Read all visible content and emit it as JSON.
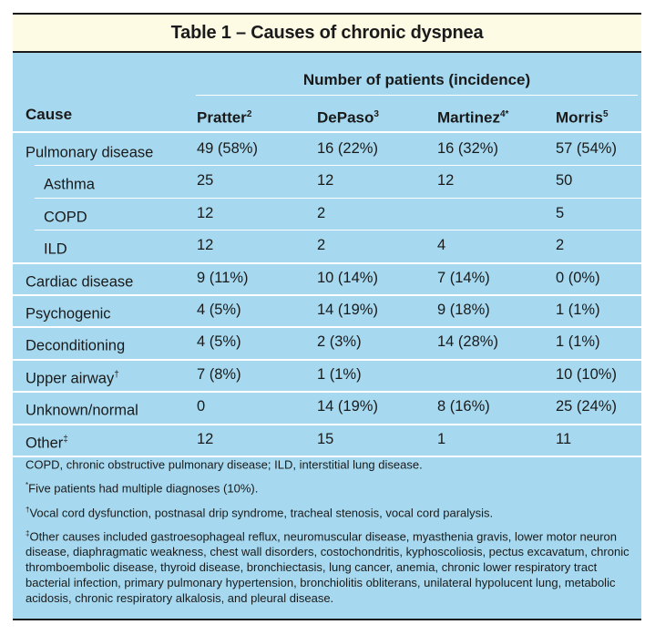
{
  "title": "Table 1 – Causes of chronic dyspnea",
  "super_header": "Number of patients (incidence)",
  "columns": [
    {
      "label": "Cause",
      "sup": ""
    },
    {
      "label": "Pratter",
      "sup": "2"
    },
    {
      "label": "DePaso",
      "sup": "3"
    },
    {
      "label": "Martinez",
      "sup": "4*"
    },
    {
      "label": "Morris",
      "sup": "5"
    }
  ],
  "rows": [
    {
      "cause": "Pulmonary disease",
      "sup": "",
      "indent": false,
      "values": [
        "49 (58%)",
        "16 (22%)",
        "16 (32%)",
        "57 (54%)"
      ]
    },
    {
      "cause": "Asthma",
      "sup": "",
      "indent": true,
      "values": [
        "25",
        "12",
        "12",
        "50"
      ]
    },
    {
      "cause": "COPD",
      "sup": "",
      "indent": true,
      "values": [
        "12",
        "2",
        "",
        "5"
      ]
    },
    {
      "cause": "ILD",
      "sup": "",
      "indent": true,
      "values": [
        "12",
        "2",
        "4",
        "2"
      ]
    },
    {
      "cause": "Cardiac disease",
      "sup": "",
      "indent": false,
      "values": [
        "9 (11%)",
        "10 (14%)",
        "7 (14%)",
        "0 (0%)"
      ]
    },
    {
      "cause": "Psychogenic",
      "sup": "",
      "indent": false,
      "values": [
        "4 (5%)",
        "14 (19%)",
        "9 (18%)",
        "1 (1%)"
      ]
    },
    {
      "cause": "Deconditioning",
      "sup": "",
      "indent": false,
      "values": [
        "4 (5%)",
        "2 (3%)",
        "14 (28%)",
        "1 (1%)"
      ]
    },
    {
      "cause": "Upper airway",
      "sup": "†",
      "indent": false,
      "values": [
        "7 (8%)",
        "1 (1%)",
        "",
        "10 (10%)"
      ]
    },
    {
      "cause": "Unknown/normal",
      "sup": "",
      "indent": false,
      "values": [
        "0",
        "14 (19%)",
        "8 (16%)",
        "25 (24%)"
      ]
    },
    {
      "cause": "Other",
      "sup": "‡",
      "indent": false,
      "values": [
        "12",
        "15",
        "1",
        "11"
      ]
    }
  ],
  "notes": [
    {
      "mark": "",
      "text": "COPD, chronic obstructive pulmonary disease; ILD, interstitial lung disease."
    },
    {
      "mark": "*",
      "text": "Five patients had multiple diagnoses (10%)."
    },
    {
      "mark": "†",
      "text": "Vocal cord dysfunction, postnasal drip syndrome, tracheal stenosis, vocal cord paralysis."
    },
    {
      "mark": "‡",
      "text": "Other causes included gastroesophageal reflux, neuromuscular disease, myasthenia gravis, lower motor neuron disease, diaphragmatic weakness, chest wall disorders, costochondritis, kyphoscoliosis, pectus excavatum, chronic thromboembolic disease, thyroid disease, bronchiectasis, lung cancer, anemia, chronic lower respiratory tract bacterial infection, primary pulmonary hypertension, bronchiolitis obliterans, unilateral hypolucent lung, metabolic acidosis, chronic respiratory alkalosis, and pleural disease."
    }
  ],
  "colors": {
    "table_bg": "#a6d9ef",
    "title_bg": "#fefbe5",
    "rule": "#ffffff",
    "border": "#1a1a1a"
  }
}
